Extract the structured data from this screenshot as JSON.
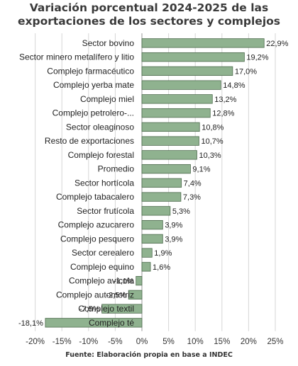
{
  "chart_data": {
    "type": "bar",
    "orientation": "horizontal",
    "title_line1": "Variación porcentual 2024-2025 de las",
    "title_line2": "exportaciones de los sectores y complejos",
    "source": "Fuente: Elaboración propia en base a INDEC",
    "xlim": [
      -20,
      25
    ],
    "xticks": [
      "-20%",
      "-15%",
      "-10%",
      "-5%",
      "0%",
      "5%",
      "10%",
      "15%",
      "20%",
      "25%"
    ],
    "grid": true,
    "bar_color": "#8fb28f",
    "categories": [
      "Sector bovino",
      "Sector minero metalífero y litio",
      "Complejo farmacéutico",
      "Complejo yerba mate",
      "Complejo miel",
      "Complejo petrolero-...",
      "Sector oleaginoso",
      "Resto de exportaciones",
      "Complejo forestal",
      "Promedio",
      "Sector hortícola",
      "Complejo tabacalero",
      "Sector frutícola",
      "Complejo azucarero",
      "Complejo pesquero",
      "Sector cerealero",
      "Complejo equino",
      "Complejo avícola",
      "Complejo automotriz",
      "Complejo textil",
      "Complejo té"
    ],
    "values": [
      22.9,
      19.2,
      17.0,
      14.8,
      13.2,
      12.8,
      10.8,
      10.7,
      10.3,
      9.1,
      7.4,
      7.3,
      5.3,
      3.9,
      3.9,
      1.9,
      1.6,
      -1.1,
      -2.5,
      -7.5,
      -18.1
    ],
    "value_labels": [
      "22,9%",
      "19,2%",
      "17,0%",
      "14,8%",
      "13,2%",
      "12,8%",
      "10,8%",
      "10,7%",
      "10,3%",
      "9,1%",
      "7,4%",
      "7,3%",
      "5,3%",
      "3,9%",
      "3,9%",
      "1,9%",
      "1,6%",
      "-1,1%",
      "-2,5%",
      "-7,5%",
      "-18,1%"
    ]
  }
}
